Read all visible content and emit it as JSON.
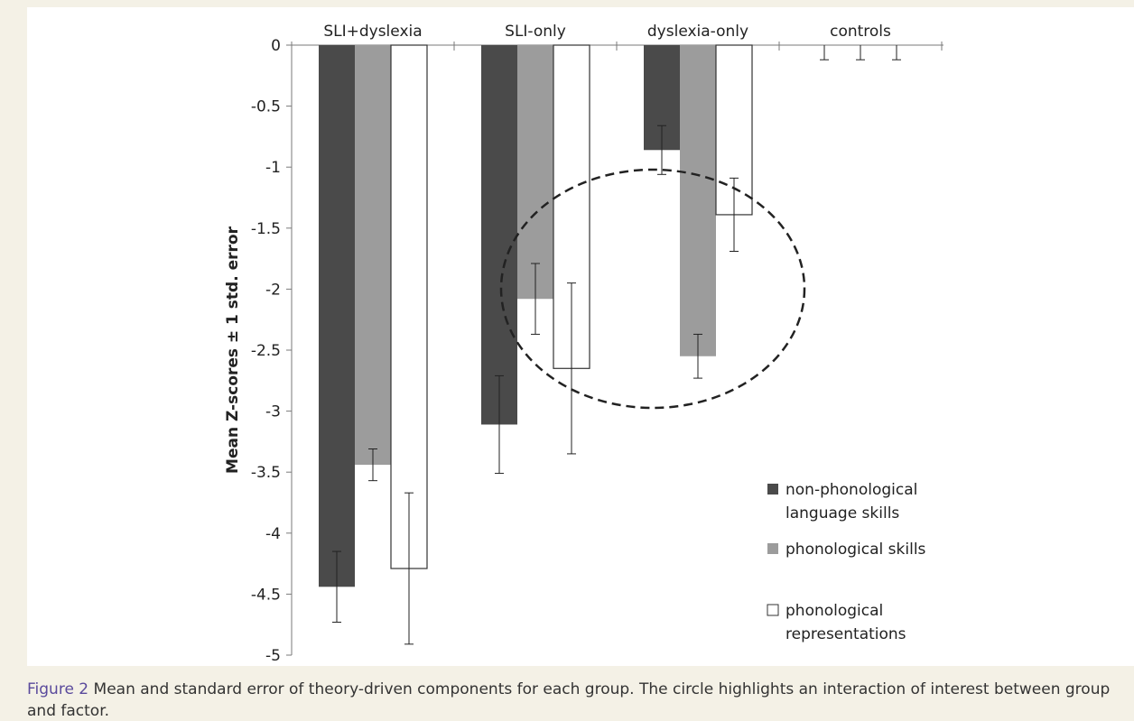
{
  "chart_data": {
    "type": "bar",
    "categories": [
      "SLI+dyslexia",
      "SLI-only",
      "dyslexia-only",
      "controls"
    ],
    "ylabel": "Mean Z-scores ± 1 std. error",
    "ylim": [
      -5,
      0
    ],
    "yticks": [
      0,
      -0.5,
      -1,
      -1.5,
      -2,
      -2.5,
      -3,
      -3.5,
      -4,
      -4.5,
      -5
    ],
    "ytick_labels": [
      "0",
      "-0.5",
      "-1",
      "-1.5",
      "-2",
      "-2.5",
      "-3",
      "-3.5",
      "-4",
      "-4.5",
      "-5"
    ],
    "grid": false,
    "legend_position": "bottom-right",
    "series": [
      {
        "name": "non-phonological language skills",
        "legend_lines": [
          "non-phonological",
          "language skills"
        ],
        "color": "#4a4a4a",
        "values": [
          -4.44,
          -3.11,
          -0.86,
          0
        ],
        "errors": [
          0.29,
          0.4,
          0.2,
          0.12
        ]
      },
      {
        "name": "phonological skills",
        "legend_lines": [
          "phonological skills"
        ],
        "color": "#9c9c9c",
        "values": [
          -3.44,
          -2.08,
          -2.55,
          0
        ],
        "errors": [
          0.13,
          0.29,
          0.18,
          0.12
        ]
      },
      {
        "name": "phonological representations",
        "legend_lines": [
          "phonological",
          "representations"
        ],
        "color": "#ffffff",
        "values": [
          -4.29,
          -2.65,
          -1.39,
          0
        ],
        "errors": [
          0.62,
          0.7,
          0.3,
          0.12
        ]
      }
    ],
    "annotation": "dashed ellipse highlighting SLI-only and dyslexia-only phonological bars"
  },
  "caption": {
    "label": "Figure 2",
    "text": "Mean and standard error of theory-driven components for each group. The circle highlights an interaction of interest between group and factor."
  }
}
